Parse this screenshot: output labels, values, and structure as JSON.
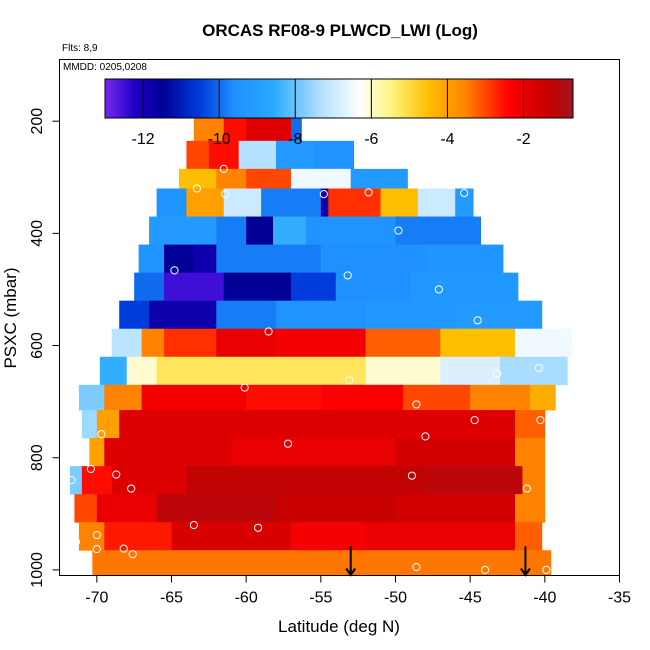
{
  "chart_data": {
    "type": "heatmap",
    "title": "ORCAS RF08-9 PLWCD_LWI (Log)",
    "flights_note": "Flts: 8,9",
    "dates_note": "MMDD: 0205,0208",
    "xlabel": "Latitude (deg N)",
    "ylabel": "PSXC (mbar)",
    "xlim": [
      -72.5,
      -35
    ],
    "ylim": [
      1010,
      90
    ],
    "x_ticks": [
      -70,
      -65,
      -60,
      -55,
      -50,
      -45,
      -40,
      -35
    ],
    "x_tick_labels": [
      "-70",
      "-65",
      "-60",
      "-55",
      "-50",
      "-45",
      "-40",
      "-35"
    ],
    "y_ticks": [
      200,
      400,
      600,
      800,
      1000
    ],
    "y_tick_labels": [
      "200",
      "400",
      "600",
      "800",
      "1000"
    ],
    "colorbar": {
      "min": -13,
      "max": -0.7,
      "ticks": [
        -12,
        -10,
        -8,
        -6,
        -4,
        -2
      ],
      "tick_labels": [
        "-12",
        "-10",
        "-8",
        "-6",
        "-4",
        "-2"
      ]
    },
    "bands": [
      {
        "p_top": 185,
        "p_bot": 235,
        "lat_start": -63.5,
        "lat_end": -56.3,
        "segments": [
          [
            -63.5,
            -61.5,
            -3.5
          ],
          [
            -61.5,
            -60,
            -2.5
          ],
          [
            -60,
            -57,
            -1.8
          ],
          [
            -57,
            -56.3,
            -10
          ]
        ]
      },
      {
        "p_top": 235,
        "p_bot": 285,
        "lat_start": -64,
        "lat_end": -52.8,
        "segments": [
          [
            -64,
            -62.5,
            -3
          ],
          [
            -62.5,
            -60.5,
            -2.5
          ],
          [
            -60.5,
            -58,
            -7.3
          ],
          [
            -58,
            -55.5,
            -9.2
          ],
          [
            -55.5,
            -52.8,
            -9.5
          ]
        ]
      },
      {
        "p_top": 285,
        "p_bot": 320,
        "lat_start": -64.5,
        "lat_end": -49.2,
        "segments": [
          [
            -64.5,
            -62,
            -4.5
          ],
          [
            -62,
            -60,
            -3.5
          ],
          [
            -60,
            -57,
            -3
          ],
          [
            -57,
            -53,
            -6.5
          ],
          [
            -53,
            -49.2,
            -9.2
          ]
        ]
      },
      {
        "p_top": 320,
        "p_bot": 370,
        "lat_start": -66,
        "lat_end": -44.8,
        "segments": [
          [
            -66,
            -64,
            -9.5
          ],
          [
            -64,
            -61.5,
            -4
          ],
          [
            -61.5,
            -59,
            -7
          ],
          [
            -59,
            -55,
            -9.8
          ],
          [
            -55,
            -54.5,
            -11.8
          ],
          [
            -54.5,
            -51,
            -2.8
          ],
          [
            -51,
            -48.5,
            -4.5
          ],
          [
            -48.5,
            -46,
            -7
          ],
          [
            -46,
            -44.8,
            -9.2
          ]
        ]
      },
      {
        "p_top": 370,
        "p_bot": 420,
        "lat_start": -66.5,
        "lat_end": -44.3,
        "segments": [
          [
            -66.5,
            -62,
            -9.2
          ],
          [
            -62,
            -60,
            -9.8
          ],
          [
            -60,
            -58.2,
            -11.5
          ],
          [
            -58.2,
            -56,
            -8.5
          ],
          [
            -56,
            -50,
            -9.5
          ],
          [
            -50,
            -44.3,
            -9.8
          ]
        ]
      },
      {
        "p_top": 420,
        "p_bot": 470,
        "lat_start": -67.2,
        "lat_end": -42.8,
        "segments": [
          [
            -67.2,
            -65.5,
            -9.5
          ],
          [
            -65.5,
            -63.5,
            -11.5
          ],
          [
            -63.5,
            -62,
            -11.8
          ],
          [
            -62,
            -55,
            -9.8
          ],
          [
            -55,
            -48,
            -9.6
          ],
          [
            -48,
            -42.8,
            -9.4
          ]
        ]
      },
      {
        "p_top": 470,
        "p_bot": 520,
        "lat_start": -67.5,
        "lat_end": -41.8,
        "segments": [
          [
            -67.5,
            -65.5,
            -10
          ],
          [
            -65.5,
            -61.5,
            -12.5
          ],
          [
            -61.5,
            -57,
            -11.5
          ],
          [
            -57,
            -54,
            -10.5
          ],
          [
            -54,
            -49,
            -9.6
          ],
          [
            -49,
            -41.8,
            -9.3
          ]
        ]
      },
      {
        "p_top": 520,
        "p_bot": 570,
        "lat_start": -68.5,
        "lat_end": -40.2,
        "segments": [
          [
            -68.5,
            -66.5,
            -10.5
          ],
          [
            -66.5,
            -62,
            -11.8
          ],
          [
            -62,
            -58,
            -9.8
          ],
          [
            -58,
            -52,
            -9.5
          ],
          [
            -52,
            -46,
            -9.3
          ],
          [
            -46,
            -40.2,
            -9.2
          ]
        ]
      },
      {
        "p_top": 570,
        "p_bot": 620,
        "lat_start": -69,
        "lat_end": -38.2,
        "segments": [
          [
            -69,
            -67,
            -7.2
          ],
          [
            -67,
            -65.5,
            -3.5
          ],
          [
            -65.5,
            -62,
            -2.8
          ],
          [
            -62,
            -58,
            -2
          ],
          [
            -58,
            -52,
            -2.2
          ],
          [
            -52,
            -47,
            -3.2
          ],
          [
            -47,
            -42,
            -4.5
          ],
          [
            -42,
            -38.2,
            -6.5
          ]
        ]
      },
      {
        "p_top": 620,
        "p_bot": 670,
        "lat_start": -69.8,
        "lat_end": -38.5,
        "segments": [
          [
            -69.8,
            -68,
            -8.5
          ],
          [
            -68,
            -66,
            -6
          ],
          [
            -66,
            -52,
            -5.2
          ],
          [
            -52,
            -47,
            -6
          ],
          [
            -47,
            -43,
            -6.8
          ],
          [
            -43,
            -38.5,
            -7.4
          ]
        ]
      },
      {
        "p_top": 670,
        "p_bot": 715,
        "lat_start": -71.2,
        "lat_end": -39.3,
        "segments": [
          [
            -71.2,
            -69.5,
            -7.8
          ],
          [
            -69.5,
            -67,
            -3.5
          ],
          [
            -67,
            -60,
            -2.2
          ],
          [
            -60,
            -55,
            -2.5
          ],
          [
            -55,
            -49.5,
            -2.3
          ],
          [
            -49.5,
            -45,
            -3
          ],
          [
            -45,
            -41,
            -3.5
          ],
          [
            -41,
            -39.3,
            -4.2
          ]
        ]
      },
      {
        "p_top": 715,
        "p_bot": 765,
        "lat_start": -71,
        "lat_end": -40,
        "segments": [
          [
            -71,
            -70,
            -7.5
          ],
          [
            -70,
            -68.5,
            -4
          ],
          [
            -68.5,
            -42,
            -1.8
          ],
          [
            -42,
            -40,
            -3.2
          ]
        ]
      },
      {
        "p_top": 765,
        "p_bot": 815,
        "lat_start": -70.5,
        "lat_end": -40,
        "segments": [
          [
            -70.5,
            -69.5,
            -4
          ],
          [
            -69.5,
            -61,
            -1.8
          ],
          [
            -61,
            -50,
            -2
          ],
          [
            -50,
            -42,
            -1.6
          ],
          [
            -42,
            -40,
            -3.5
          ]
        ]
      },
      {
        "p_top": 815,
        "p_bot": 865,
        "lat_start": -71.8,
        "lat_end": -40,
        "segments": [
          [
            -71.8,
            -71,
            -7.8
          ],
          [
            -71,
            -69,
            -2.5
          ],
          [
            -69,
            -64,
            -1.8
          ],
          [
            -64,
            -48,
            -1.3
          ],
          [
            -48,
            -41.5,
            -1.2
          ],
          [
            -41.5,
            -40,
            -3.5
          ]
        ]
      },
      {
        "p_top": 865,
        "p_bot": 915,
        "lat_start": -71.5,
        "lat_end": -40,
        "segments": [
          [
            -71.5,
            -70,
            -3
          ],
          [
            -70,
            -66,
            -2
          ],
          [
            -66,
            -58,
            -1.2
          ],
          [
            -58,
            -50,
            -1.4
          ],
          [
            -50,
            -42,
            -1.6
          ],
          [
            -42,
            -40,
            -3.5
          ]
        ]
      },
      {
        "p_top": 915,
        "p_bot": 965,
        "lat_start": -71.2,
        "lat_end": -40.2,
        "segments": [
          [
            -71.2,
            -69.5,
            -3.5
          ],
          [
            -69.5,
            -65,
            -2.6
          ],
          [
            -65,
            -57,
            -1.7
          ],
          [
            -57,
            -52,
            -2.2
          ],
          [
            -52,
            -42,
            -2
          ],
          [
            -42,
            -40.2,
            -3.2
          ]
        ]
      },
      {
        "p_top": 965,
        "p_bot": 1010,
        "lat_start": -70.3,
        "lat_end": -39.6,
        "segments": [
          [
            -70.3,
            -39.6,
            -3.4
          ]
        ]
      }
    ],
    "markers": [
      {
        "lat": -62.8,
        "p": 187
      },
      {
        "lat": -59.9,
        "p": 187
      },
      {
        "lat": -56.7,
        "p": 187
      },
      {
        "lat": -61.5,
        "p": 285
      },
      {
        "lat": -63.3,
        "p": 320
      },
      {
        "lat": -61.4,
        "p": 330
      },
      {
        "lat": -54.8,
        "p": 330
      },
      {
        "lat": -51.8,
        "p": 327
      },
      {
        "lat": -45.4,
        "p": 328
      },
      {
        "lat": -49.8,
        "p": 395
      },
      {
        "lat": -64.8,
        "p": 466
      },
      {
        "lat": -53.2,
        "p": 475
      },
      {
        "lat": -47.1,
        "p": 500
      },
      {
        "lat": -44.5,
        "p": 555
      },
      {
        "lat": -58.5,
        "p": 575
      },
      {
        "lat": -38.5,
        "p": 580
      },
      {
        "lat": -43.2,
        "p": 650
      },
      {
        "lat": -40.4,
        "p": 640
      },
      {
        "lat": -53.1,
        "p": 662
      },
      {
        "lat": -60.1,
        "p": 675
      },
      {
        "lat": -48.6,
        "p": 705
      },
      {
        "lat": -44.7,
        "p": 733
      },
      {
        "lat": -40.3,
        "p": 733
      },
      {
        "lat": -69.7,
        "p": 758
      },
      {
        "lat": -48.0,
        "p": 762
      },
      {
        "lat": -57.2,
        "p": 775
      },
      {
        "lat": -70.4,
        "p": 820
      },
      {
        "lat": -68.7,
        "p": 830
      },
      {
        "lat": -48.9,
        "p": 832
      },
      {
        "lat": -71.7,
        "p": 840
      },
      {
        "lat": -67.7,
        "p": 855
      },
      {
        "lat": -41.2,
        "p": 855
      },
      {
        "lat": -63.5,
        "p": 920
      },
      {
        "lat": -59.2,
        "p": 925
      },
      {
        "lat": -70.0,
        "p": 938
      },
      {
        "lat": -71.4,
        "p": 950
      },
      {
        "lat": -70.0,
        "p": 963
      },
      {
        "lat": -68.2,
        "p": 962
      },
      {
        "lat": -67.6,
        "p": 972
      },
      {
        "lat": -48.6,
        "p": 995
      },
      {
        "lat": -44.0,
        "p": 1000
      },
      {
        "lat": -39.9,
        "p": 1000
      }
    ],
    "arrows": [
      {
        "lat": -53.0,
        "p_top": 958,
        "p_bot": 1010
      },
      {
        "lat": -41.3,
        "p_top": 958,
        "p_bot": 1010
      }
    ]
  }
}
